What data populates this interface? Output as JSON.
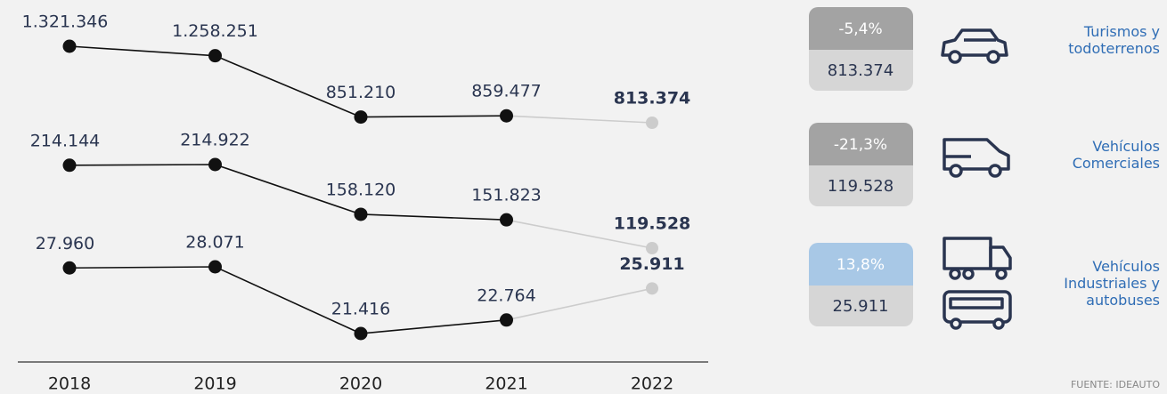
{
  "chart_data": {
    "type": "line",
    "categories": [
      "2018",
      "2019",
      "2020",
      "2021",
      "2022"
    ],
    "series": [
      {
        "name": "Turismos y todoterrenos",
        "color": "#111111",
        "values": [
          1321346,
          1258251,
          851210,
          859477,
          813374
        ],
        "value_labels": [
          "1.321.346",
          "1.258.251",
          "851.210",
          "859.477",
          "813.374"
        ],
        "change": {
          "value": -5.4,
          "label": "-5,4%"
        }
      },
      {
        "name": "Vehículos Comerciales",
        "color": "#111111",
        "values": [
          214144,
          214922,
          158120,
          151823,
          119528
        ],
        "value_labels": [
          "214.144",
          "214.922",
          "158.120",
          "151.823",
          "119.528"
        ],
        "change": {
          "value": -21.3,
          "label": "-21,3%"
        }
      },
      {
        "name": "Vehículos Industriales y autobuses",
        "color": "#111111",
        "values": [
          27960,
          28071,
          21416,
          22764,
          25911
        ],
        "value_labels": [
          "27.960",
          "28.071",
          "21.416",
          "22.764",
          "25.911"
        ],
        "change": {
          "value": 13.8,
          "label": "13,8%"
        }
      }
    ],
    "source": "FUENTE: IDEAUTO"
  }
}
